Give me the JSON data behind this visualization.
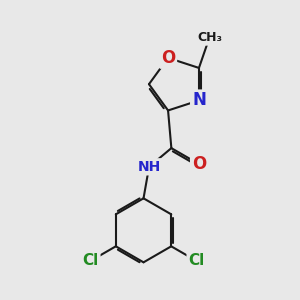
{
  "background_color": "#e8e8e8",
  "bond_color": "#1a1a1a",
  "bond_width": 1.5,
  "colors": {
    "C": "#1a1a1a",
    "N": "#2525cc",
    "O": "#cc2020",
    "Cl": "#228B22",
    "H": "#4a7a7a"
  },
  "font_size": 11
}
